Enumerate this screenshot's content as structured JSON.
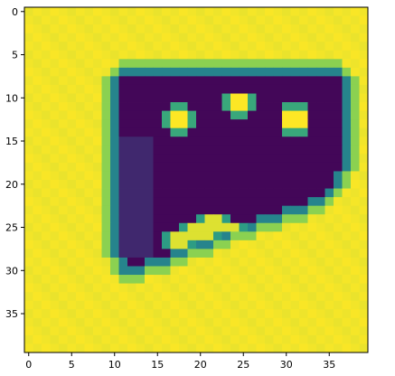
{
  "chart_data": {
    "type": "heatmap",
    "title": "",
    "xlabel": "",
    "ylabel": "",
    "colormap": "viridis",
    "grid": false,
    "legend": "none",
    "rows": 40,
    "cols": 40,
    "xlim": [
      -0.5,
      39.5
    ],
    "ylim": [
      39.5,
      -0.5
    ],
    "xticks": [
      0,
      5,
      10,
      15,
      20,
      25,
      30,
      35
    ],
    "yticks": [
      0,
      5,
      10,
      15,
      20,
      25,
      30,
      35
    ],
    "xtick_labels": [
      "0",
      "5",
      "10",
      "15",
      "20",
      "25",
      "30",
      "35"
    ],
    "ytick_labels": [
      "0",
      "5",
      "10",
      "15",
      "20",
      "25",
      "30",
      "35"
    ],
    "value_range": [
      0,
      1
    ],
    "shape_description_rows": [
      {
        "row": 7,
        "from": 11,
        "to": 36
      },
      {
        "row": 8,
        "from": 10,
        "to": 37
      },
      {
        "row": 9,
        "from": 10,
        "to": 37
      },
      {
        "row": 10,
        "from": 10,
        "to": 37
      },
      {
        "row": 11,
        "from": 10,
        "to": 37
      },
      {
        "row": 12,
        "from": 10,
        "to": 37
      },
      {
        "row": 13,
        "from": 10,
        "to": 37
      },
      {
        "row": 14,
        "from": 10,
        "to": 37
      },
      {
        "row": 15,
        "from": 10,
        "to": 37
      },
      {
        "row": 16,
        "from": 10,
        "to": 37
      },
      {
        "row": 17,
        "from": 10,
        "to": 37
      },
      {
        "row": 18,
        "from": 10,
        "to": 37
      },
      {
        "row": 19,
        "from": 10,
        "to": 36
      },
      {
        "row": 20,
        "from": 10,
        "to": 36
      },
      {
        "row": 21,
        "from": 10,
        "to": 35
      },
      {
        "row": 22,
        "from": 10,
        "to": 34
      },
      {
        "row": 23,
        "from": 10,
        "to": 32
      },
      {
        "row": 24,
        "from": 10,
        "to": 29
      },
      {
        "row": 25,
        "from": 10,
        "to": 26
      },
      {
        "row": 26,
        "from": 10,
        "to": 23
      },
      {
        "row": 27,
        "from": 10,
        "to": 21
      },
      {
        "row": 28,
        "from": 10,
        "to": 18
      },
      {
        "row": 29,
        "from": 11,
        "to": 16
      },
      {
        "row": 30,
        "from": 11,
        "to": 13
      }
    ],
    "bright_blobs": [
      {
        "cx": 17.5,
        "cy": 12.5,
        "r": 2.0
      },
      {
        "cx": 24.5,
        "cy": 10.8,
        "r": 1.8
      },
      {
        "cx": 31.0,
        "cy": 12.5,
        "r": 2.0
      }
    ],
    "bright_mouth": [
      {
        "row": 24,
        "from": 20,
        "to": 23
      },
      {
        "row": 25,
        "from": 18,
        "to": 25
      },
      {
        "row": 26,
        "from": 16,
        "to": 22
      },
      {
        "row": 27,
        "from": 16,
        "to": 19
      }
    ]
  }
}
